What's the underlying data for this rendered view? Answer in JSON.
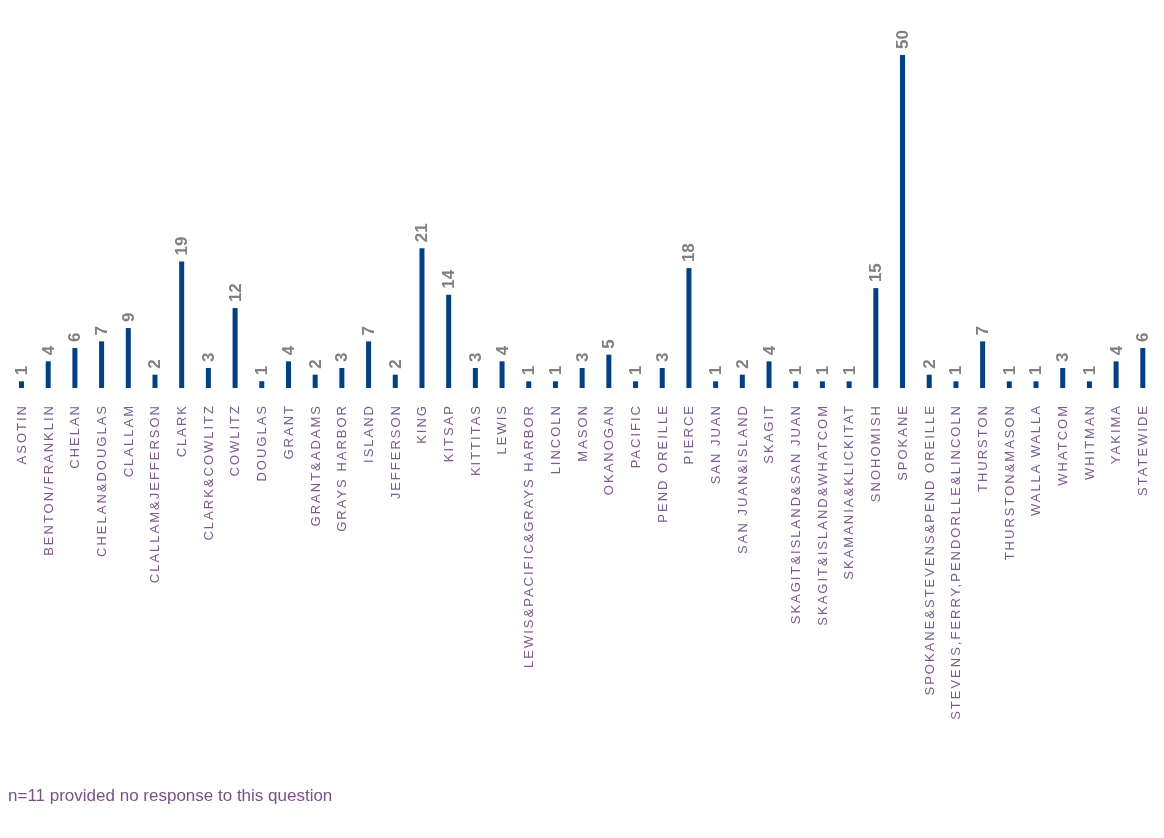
{
  "chart_data": {
    "type": "bar",
    "categories": [
      "ASOTIN",
      "BENTON/FRANKLIN",
      "CHELAN",
      "CHELAN&DOUGLAS",
      "CLALLAM",
      "CLALLAM&JEFFERSON",
      "CLARK",
      "CLARK&COWLITZ",
      "COWLITZ",
      "DOUGLAS",
      "GRANT",
      "GRANT&ADAMS",
      "GRAYS HARBOR",
      "ISLAND",
      "JEFFERSON",
      "KING",
      "KITSAP",
      "KITTITAS",
      "LEWIS",
      "LEWIS&PACIFIC&GRAYS HARBOR",
      "LINCOLN",
      "MASON",
      "OKANOGAN",
      "PACIFIC",
      "PEND OREILLE",
      "PIERCE",
      "SAN JUAN",
      "SAN JUAN&ISLAND",
      "SKAGIT",
      "SKAGIT&ISLAND&SAN JUAN",
      "SKAGIT&ISLAND&WHATCOM",
      "SKAMANIA&KLICKITAT",
      "SNOHOMISH",
      "SPOKANE",
      "SPOKANE&STEVENS&PEND OREILLE",
      "STEVENS,FERRY,PENDORLLE&LINCOLN",
      "THURSTON",
      "THURSTON&MASON",
      "WALLA WALLA",
      "WHATCOM",
      "WHITMAN",
      "YAKIMA",
      "STATEWIDE"
    ],
    "values": [
      1,
      4,
      6,
      7,
      9,
      2,
      19,
      3,
      12,
      1,
      4,
      2,
      3,
      7,
      2,
      21,
      14,
      3,
      4,
      1,
      1,
      3,
      5,
      1,
      3,
      18,
      1,
      2,
      4,
      1,
      1,
      1,
      15,
      50,
      2,
      1,
      7,
      1,
      1,
      3,
      1,
      4,
      6
    ],
    "color": "#003f8a",
    "data_labels": true,
    "annotations": [
      "n=11 provided no response to this question"
    ]
  }
}
